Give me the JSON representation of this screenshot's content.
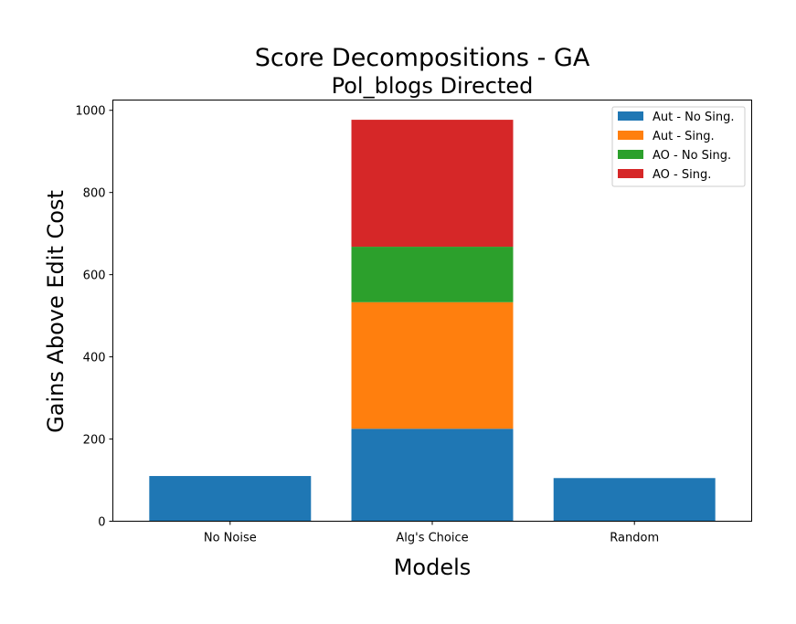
{
  "chart_data": {
    "type": "bar",
    "stacked": true,
    "title": "Score Decompositions - GA",
    "subtitle": "Pol_blogs Directed",
    "xlabel": "Models",
    "ylabel": "Gains Above Edit Cost",
    "categories": [
      "No Noise",
      "Alg's Choice",
      "Random"
    ],
    "ylim": [
      0,
      1025
    ],
    "yticks": [
      0,
      200,
      400,
      600,
      800,
      1000
    ],
    "grid": false,
    "legend_position": "top-right",
    "series": [
      {
        "name": "Aut - No Sing.",
        "color": "#1f77b4",
        "values": [
          110,
          225,
          105
        ]
      },
      {
        "name": "Aut - Sing.",
        "color": "#ff7f0e",
        "values": [
          0,
          308,
          0
        ]
      },
      {
        "name": "AO - No Sing.",
        "color": "#2ca02c",
        "values": [
          0,
          135,
          0
        ]
      },
      {
        "name": "AO - Sing.",
        "color": "#d62728",
        "values": [
          0,
          309,
          0
        ]
      }
    ]
  }
}
